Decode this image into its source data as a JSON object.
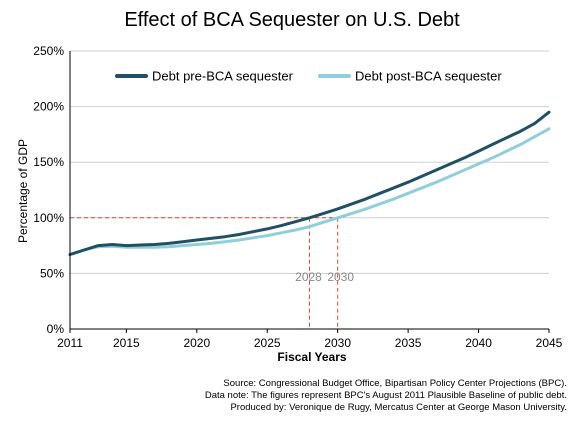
{
  "chart_data": {
    "type": "line",
    "title": "Effect of BCA Sequester on U.S. Debt",
    "xlabel": "Fiscal Years",
    "ylabel": "Percentage of GDP",
    "xlim": [
      2011,
      2045
    ],
    "ylim": [
      0,
      250
    ],
    "x_ticks": [
      "2011",
      "2015",
      "2020",
      "2025",
      "2030",
      "2035",
      "2040",
      "2045"
    ],
    "y_ticks": [
      "0%",
      "50%",
      "100%",
      "150%",
      "200%",
      "250%"
    ],
    "legend_position": "top",
    "series": [
      {
        "name": "Debt pre-BCA sequester",
        "color": "#1f5063",
        "x": [
          2011,
          2012,
          2013,
          2014,
          2015,
          2016,
          2017,
          2018,
          2019,
          2020,
          2021,
          2022,
          2023,
          2024,
          2025,
          2026,
          2027,
          2028,
          2029,
          2030,
          2031,
          2032,
          2033,
          2034,
          2035,
          2036,
          2037,
          2038,
          2039,
          2040,
          2041,
          2042,
          2043,
          2044,
          2045
        ],
        "y": [
          67,
          71,
          75,
          76,
          75,
          75.5,
          76,
          77,
          78.5,
          80,
          81.5,
          83,
          85,
          87.5,
          90,
          93,
          96.5,
          100,
          104,
          108,
          112.5,
          117,
          122,
          127,
          132,
          137.5,
          143,
          148.5,
          154,
          160,
          166,
          172,
          178,
          185,
          195
        ]
      },
      {
        "name": "Debt post-BCA sequester",
        "color": "#8fcfdc",
        "x": [
          2011,
          2012,
          2013,
          2014,
          2015,
          2016,
          2017,
          2018,
          2019,
          2020,
          2021,
          2022,
          2023,
          2024,
          2025,
          2026,
          2027,
          2028,
          2029,
          2030,
          2031,
          2032,
          2033,
          2034,
          2035,
          2036,
          2037,
          2038,
          2039,
          2040,
          2041,
          2042,
          2043,
          2044,
          2045
        ],
        "y": [
          67,
          71,
          74,
          74.5,
          73.5,
          73.5,
          73.5,
          74,
          75,
          76,
          77,
          78.5,
          80,
          82,
          84,
          86.5,
          89,
          92,
          96,
          100,
          104,
          108,
          112.5,
          117,
          122,
          127,
          132,
          137.5,
          143,
          148.5,
          154,
          160,
          166,
          173,
          180
        ]
      }
    ],
    "reference_line": {
      "y": 100,
      "color": "#e8432e"
    },
    "annotations": [
      {
        "label": "2028",
        "x": 2028,
        "y": 100
      },
      {
        "label": "2030",
        "x": 2030,
        "y": 100
      }
    ]
  },
  "source_note": {
    "line1": "Source: Congressional Budget Office, Bipartisan Policy Center Projections (BPC).",
    "line2": "Data note: The figures represent BPC's August 2011 Plausible Baseline of public debt.",
    "line3": "Produced by: Veronique de Rugy, Mercatus Center at George Mason University."
  }
}
